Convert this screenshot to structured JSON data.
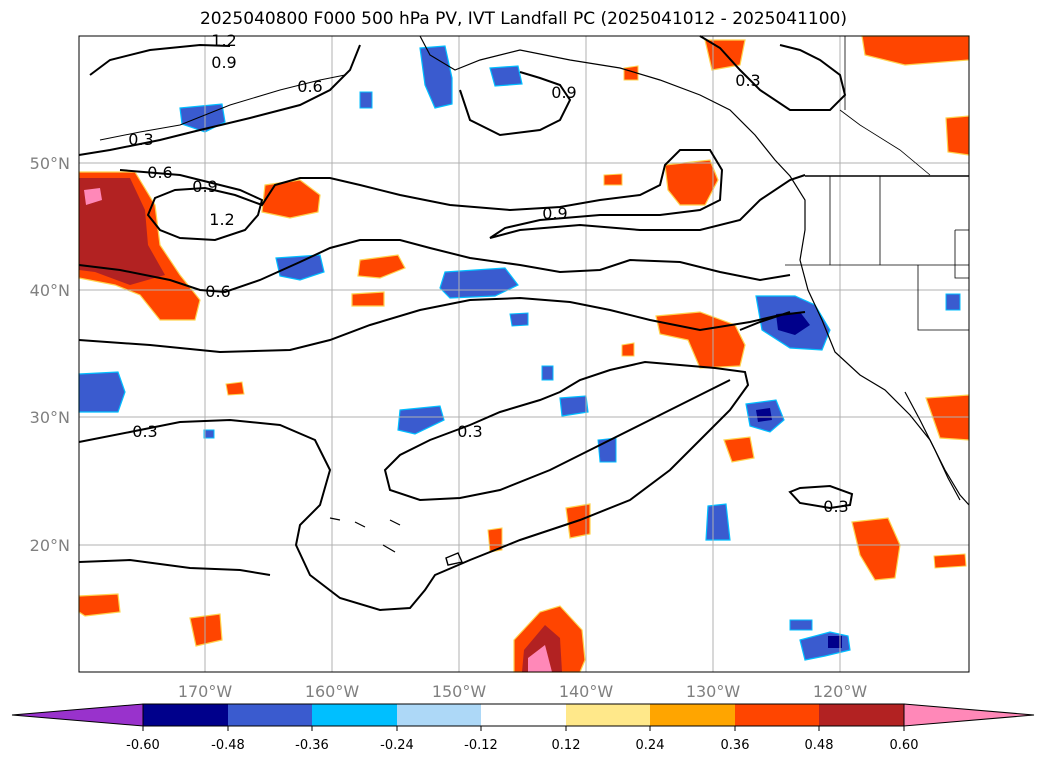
{
  "title": "2025040800 F000 500 hPa PV, IVT Landfall PC (2025041012 - 2025041100)",
  "map": {
    "lat_labels": [
      "50°N",
      "40°N",
      "30°N",
      "20°N"
    ],
    "lon_labels": [
      "170°W",
      "160°W",
      "150°W",
      "140°W",
      "130°W",
      "120°W"
    ],
    "contour_labels": [
      "1.2",
      "0.9",
      "0.6",
      "0.3",
      "0.9",
      "0.9",
      "0.6",
      "0.9",
      "1.2",
      "0.6",
      "0.3",
      "0.3",
      "0.3",
      "0.3"
    ]
  },
  "colorbar": {
    "labels": [
      "-0.60",
      "-0.48",
      "-0.36",
      "-0.24",
      "-0.12",
      "0.12",
      "0.24",
      "0.36",
      "0.48",
      "0.60"
    ],
    "colors": {
      "lowest": "#9932cc",
      "neg_0_60": "#00008b",
      "neg_0_48": "#3a5bcf",
      "neg_0_36": "#00bfff",
      "neg_0_24": "#add8f7",
      "neutral": "#ffffff",
      "pos_0_12": "#ffe88a",
      "pos_0_24": "#ffa500",
      "pos_0_36": "#ff4500",
      "pos_0_48": "#b22222",
      "highest": "#ff88b8"
    }
  }
}
